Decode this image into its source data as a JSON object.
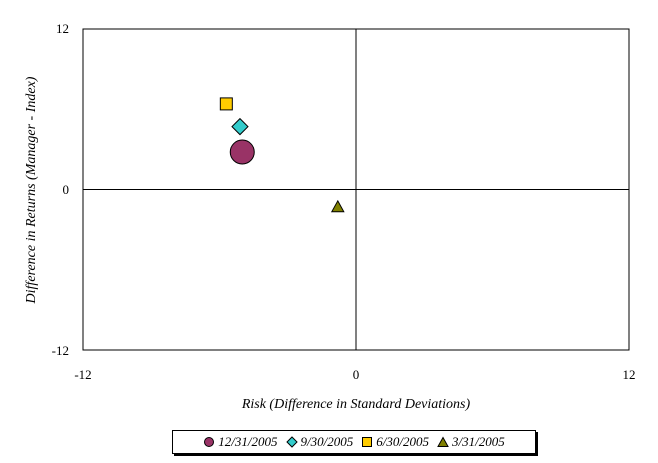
{
  "chart_data": {
    "type": "scatter",
    "xlabel": "Risk (Difference in Standard Deviations)",
    "ylabel": "Difference in Returns (Manager - Index)",
    "xlim": [
      -12,
      12
    ],
    "ylim": [
      -12,
      12
    ],
    "x_ticks": [
      "-12",
      "0",
      "12"
    ],
    "y_ticks": [
      "12",
      "0",
      "-12"
    ],
    "grid": false,
    "legend_position": "bottom",
    "series": [
      {
        "name": "12/31/2005",
        "marker": "circle",
        "color": "#993366",
        "size": "large",
        "x": -5.0,
        "y": 2.8
      },
      {
        "name": "9/30/2005",
        "marker": "diamond",
        "color": "#33CCCC",
        "size": "medium",
        "x": -5.1,
        "y": 4.7
      },
      {
        "name": "6/30/2005",
        "marker": "square",
        "color": "#FFCC00",
        "size": "small",
        "x": -5.7,
        "y": 6.4
      },
      {
        "name": "3/31/2005",
        "marker": "triangle",
        "color": "#808000",
        "size": "small",
        "x": -0.8,
        "y": -1.3
      }
    ]
  }
}
